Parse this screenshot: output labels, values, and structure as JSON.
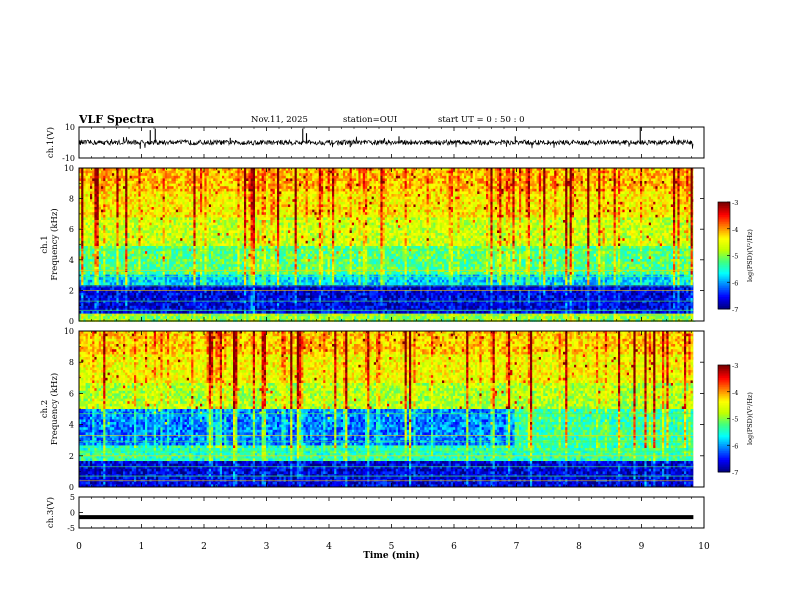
{
  "header": {
    "title": "VLF Spectra",
    "date": "Nov.11, 2025",
    "station": "station=OUI",
    "start": "start  UT =   0 : 50 : 0"
  },
  "chart_data": [
    {
      "type": "line",
      "name": "waveform-ch1",
      "ylabel": "ch.1(V)",
      "ylim": [
        -10,
        10
      ],
      "yticklabels": [
        "10",
        "-10"
      ],
      "xlim": [
        0,
        10
      ],
      "baseline": 0,
      "spikes": [
        {
          "t": 1.14,
          "v": 8
        },
        {
          "t": 1.22,
          "v": 9
        },
        {
          "t": 3.58,
          "v": 9
        },
        {
          "t": 3.64,
          "v": 6
        },
        {
          "t": 8.98,
          "v": 10
        },
        {
          "t": 5.12,
          "v": 4
        },
        {
          "t": 0.98,
          "v": -4
        },
        {
          "t": 2.42,
          "v": 3
        },
        {
          "t": 6.98,
          "v": 4
        },
        {
          "t": 4.34,
          "v": -3
        }
      ]
    },
    {
      "type": "heatmap",
      "name": "spectrogram-ch1",
      "ylabel": "ch.1\nFrequency (kHz)",
      "ylim": [
        0,
        10
      ],
      "yticks": [
        0,
        2,
        4,
        6,
        8,
        10
      ],
      "xlim": [
        0,
        10
      ],
      "data_end_min": 9.83,
      "colorbar": {
        "label": "log(PSD)(V²/Hz)",
        "range": [
          -7,
          -3
        ],
        "ticks": [
          -3,
          -4,
          -5,
          -6,
          -7
        ]
      },
      "bands": [
        {
          "f": [
            0.0,
            0.5
          ],
          "level": 0.5
        },
        {
          "f": [
            0.5,
            2.4
          ],
          "level": 0.08
        },
        {
          "f": [
            2.4,
            3.2
          ],
          "level": 0.3
        },
        {
          "f": [
            3.2,
            5.0
          ],
          "level": 0.45
        },
        {
          "f": [
            5.0,
            6.8
          ],
          "level": 0.58
        },
        {
          "f": [
            6.8,
            8.5
          ],
          "level": 0.66
        },
        {
          "f": [
            8.5,
            10.0
          ],
          "level": 0.72
        }
      ]
    },
    {
      "type": "heatmap",
      "name": "spectrogram-ch2",
      "ylabel": "ch.2\nFrequency (kHz)",
      "ylim": [
        0,
        10
      ],
      "yticks": [
        0,
        2,
        4,
        6,
        8,
        10
      ],
      "xlim": [
        0,
        10
      ],
      "data_end_min": 9.83,
      "colorbar": {
        "label": "log(PSD)(V²/Hz)",
        "range": [
          -7,
          -3
        ],
        "ticks": [
          -3,
          -4,
          -5,
          -6,
          -7
        ]
      },
      "bands": [
        {
          "f": [
            0.0,
            1.8
          ],
          "level": 0.08
        },
        {
          "f": [
            1.8,
            2.8
          ],
          "level": 0.4
        },
        {
          "f": [
            2.8,
            5.0
          ],
          "level": 0.22
        },
        {
          "f": [
            5.0,
            6.8
          ],
          "level": 0.55
        },
        {
          "f": [
            6.8,
            8.5
          ],
          "level": 0.64
        },
        {
          "f": [
            8.5,
            10.0
          ],
          "level": 0.7
        }
      ],
      "regime_change_min": 6.95
    },
    {
      "type": "line",
      "name": "waveform-ch3",
      "ylabel": "ch.3(V)",
      "ylim": [
        -5,
        5
      ],
      "yticklabels": [
        "5",
        "0",
        "-5"
      ],
      "xlim": [
        0,
        10
      ],
      "baseline": -1.5
    }
  ],
  "xaxis": {
    "label": "Time  (min)",
    "ticks": [
      "0",
      "1",
      "2",
      "3",
      "4",
      "5",
      "6",
      "7",
      "8",
      "9",
      "10"
    ]
  },
  "colormap": [
    "#000080",
    "#0000ff",
    "#0080ff",
    "#00ffff",
    "#40ff80",
    "#c0ff00",
    "#ffff00",
    "#ff8000",
    "#ff0000",
    "#800000"
  ]
}
